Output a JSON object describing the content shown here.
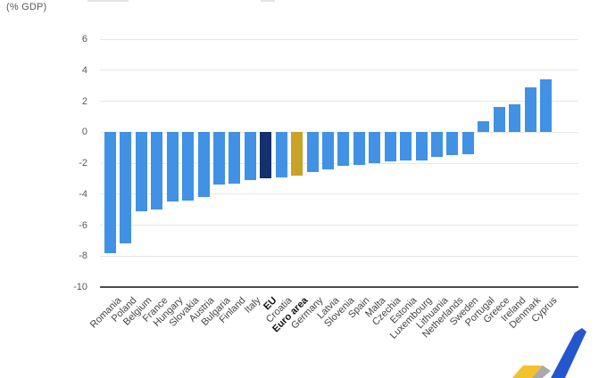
{
  "chart_data": {
    "type": "bar",
    "unit": "(% GDP)",
    "categories": [
      "Romania",
      "Poland",
      "Belgium",
      "France",
      "Hungary",
      "Slovakia",
      "Austria",
      "Bulgaria",
      "Finland",
      "Italy",
      "EU",
      "Croatia",
      "Euro area",
      "Germany",
      "Latvia",
      "Slovenia",
      "Spain",
      "Malta",
      "Czechia",
      "Estonia",
      "Luxembourg",
      "Lithuania",
      "Netherlands",
      "Sweden",
      "Portugal",
      "Greece",
      "Ireland",
      "Denmark",
      "Cyprus"
    ],
    "values": [
      -7.8,
      -7.2,
      -5.1,
      -5.0,
      -4.5,
      -4.4,
      -4.2,
      -3.4,
      -3.3,
      -3.1,
      -3.0,
      -2.9,
      -2.8,
      -2.6,
      -2.4,
      -2.2,
      -2.1,
      -2.0,
      -1.9,
      -1.8,
      -1.8,
      -1.6,
      -1.5,
      -1.4,
      0.7,
      1.6,
      1.8,
      2.9,
      3.4
    ],
    "bold_categories": [
      "EU",
      "Euro area"
    ],
    "highlighted_bars": {
      "EU": "dark-navy",
      "Euro area": "gold"
    },
    "yticks": [
      6,
      4,
      2,
      0,
      -2,
      -4,
      -6,
      -8,
      -10
    ],
    "ylim": [
      -10,
      6
    ],
    "grid": true,
    "legend": "none",
    "colors": {
      "bar": "#4191e5",
      "eu": "#14306e",
      "euro_area": "#c9a227",
      "grid": "#e7e7e7",
      "axis": "#4d4d4d",
      "tick_text": "#595959",
      "label_text": "#444444"
    }
  },
  "logo": {
    "name": "eurostat-logo-fragment",
    "colors": {
      "yellow": "#f2c12e",
      "gray": "#a6a9ad",
      "blue": "#2457cd"
    }
  }
}
